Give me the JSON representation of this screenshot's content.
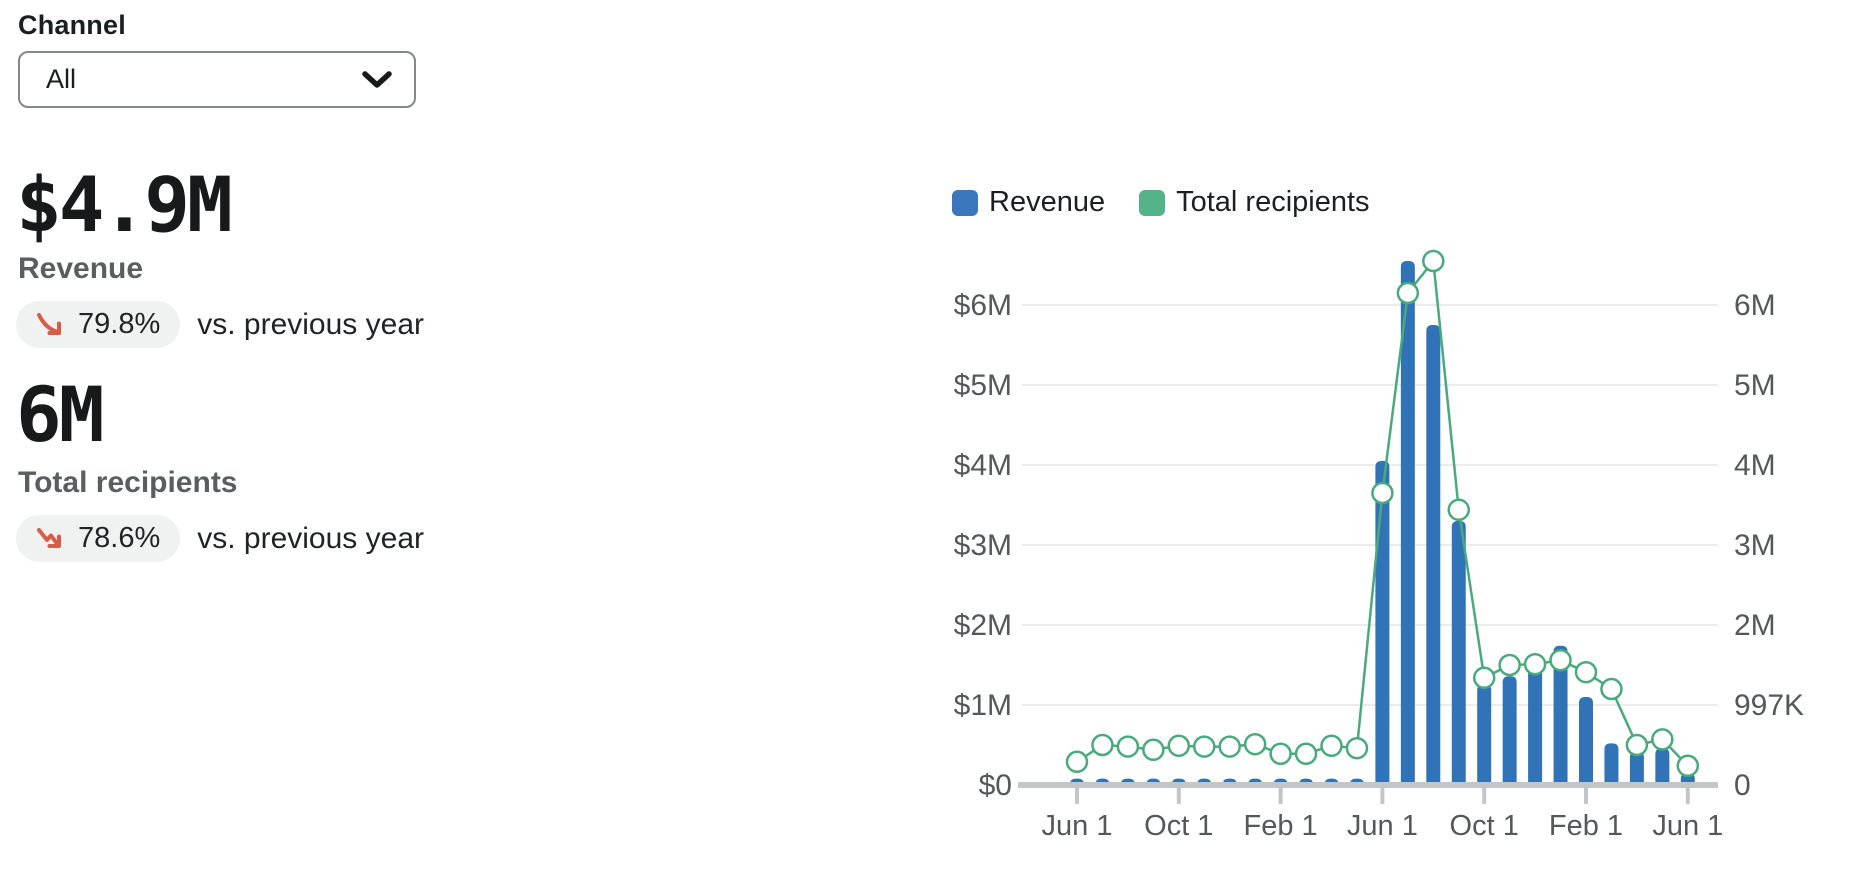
{
  "channel_filter": {
    "label": "Channel",
    "value": "All"
  },
  "metrics": [
    {
      "value": "$4.9M",
      "label": "Revenue",
      "delta": "79.8%",
      "trend": "down",
      "compare": "vs. previous year"
    },
    {
      "value": "6M",
      "label": "Total recipients",
      "delta": "78.6%",
      "trend": "down",
      "compare": "vs. previous year"
    }
  ],
  "colors": {
    "revenue_bar": "#3173b7",
    "revenue_legend": "#3b77bc",
    "recipients_line": "#49aa7e",
    "recipients_legend": "#55b389",
    "negative_delta": "#d95c49",
    "axis": "#c3c6c8",
    "grid": "#ececec",
    "axis_text": "#54585b"
  },
  "legend": [
    {
      "label": "Revenue"
    },
    {
      "label": "Total recipients"
    }
  ],
  "chart_data": {
    "type": "bar",
    "subtype": "monthly bar + line combo, dual y-axis",
    "months_count": 25,
    "x_tick_labels": [
      "Jun 1",
      "Oct 1",
      "Feb 1",
      "Jun 1",
      "Oct 1",
      "Feb 1",
      "Jun 1"
    ],
    "x_tick_positions": [
      0,
      4,
      8,
      12,
      16,
      20,
      24
    ],
    "left_axis": {
      "series": "Revenue",
      "tick_labels": [
        "$0",
        "$1M",
        "$2M",
        "$3M",
        "$4M",
        "$5M",
        "$6M"
      ],
      "range_musd": [
        0,
        6.5
      ]
    },
    "right_axis": {
      "series": "Total recipients",
      "tick_labels": [
        "0",
        "997K",
        "2M",
        "3M",
        "4M",
        "5M",
        "6M"
      ]
    },
    "series": [
      {
        "name": "Revenue",
        "type": "bar",
        "unit": "$M",
        "values": [
          0.08,
          0.08,
          0.08,
          0.08,
          0.08,
          0.08,
          0.08,
          0.08,
          0.08,
          0.08,
          0.08,
          0.08,
          4.05,
          6.55,
          5.75,
          3.3,
          1.26,
          1.36,
          1.51,
          1.74,
          1.1,
          0.52,
          0.42,
          0.46,
          0.15
        ]
      },
      {
        "name": "Total recipients",
        "type": "line",
        "unit": "M",
        "marker": "circle",
        "values": [
          0.29,
          0.5,
          0.48,
          0.44,
          0.49,
          0.48,
          0.48,
          0.51,
          0.39,
          0.39,
          0.49,
          0.46,
          3.65,
          6.15,
          6.55,
          3.44,
          1.34,
          1.5,
          1.51,
          1.56,
          1.41,
          1.2,
          0.5,
          0.57,
          0.24
        ]
      }
    ],
    "legend_position": "top-left",
    "grid": "horizontal only"
  }
}
